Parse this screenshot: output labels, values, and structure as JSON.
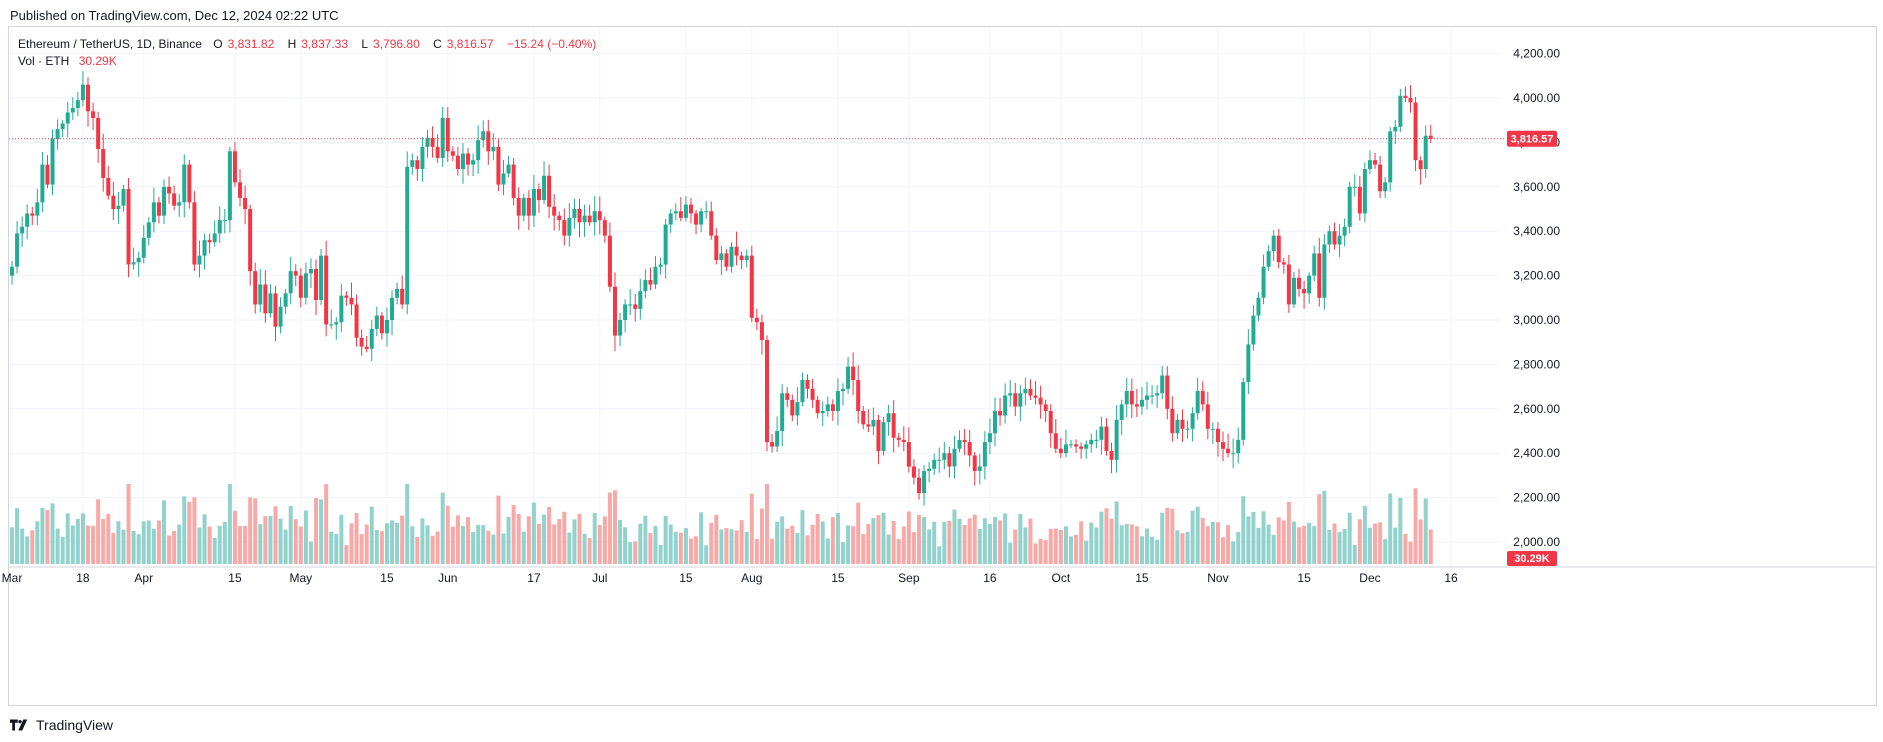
{
  "header": {
    "published": "Published on TradingView.com, Dec 12, 2024 02:22 UTC"
  },
  "legend": {
    "symbol": "Ethereum / TetherUS, 1D, Binance",
    "o_label": "O",
    "o_value": "3,831.82",
    "h_label": "H",
    "h_value": "3,837.33",
    "l_label": "L",
    "l_value": "3,796.80",
    "c_label": "C",
    "c_value": "3,816.57",
    "change": "−15.24 (−0.40%)",
    "vol_label": "Vol · ETH",
    "vol_value": "30.29K"
  },
  "footer": {
    "brand": "TradingView"
  },
  "colors": {
    "up": "#22ab94",
    "down": "#f23645",
    "vol_up": "#92d2cc",
    "vol_down": "#f7a9a7",
    "grid": "#f0f3fa",
    "axis_text": "#131722"
  },
  "chart_data": {
    "type": "candlestick",
    "title": "Ethereum / TetherUS, 1D, Binance",
    "price_axis": {
      "min": 1950,
      "max": 4300,
      "ticks": [
        2000,
        2200,
        2400,
        2600,
        2800,
        3000,
        3200,
        3400,
        3600,
        3800,
        4000,
        4200
      ],
      "tick_labels": [
        "2,000.00",
        "2,200.00",
        "2,400.00",
        "2,600.00",
        "2,800.00",
        "3,000.00",
        "3,200.00",
        "3,400.00",
        "3,600.00",
        "3,800.00",
        "4,000.00",
        "4,200.00"
      ]
    },
    "time_axis": {
      "labels": [
        "Mar",
        "18",
        "Apr",
        "15",
        "May",
        "15",
        "Jun",
        "17",
        "Jul",
        "15",
        "Aug",
        "15",
        "Sep",
        "16",
        "Oct",
        "15",
        "Nov",
        "15",
        "Dec",
        "16"
      ],
      "bar_index": [
        0,
        14,
        26,
        44,
        57,
        74,
        86,
        103,
        116,
        133,
        146,
        163,
        177,
        193,
        207,
        223,
        238,
        255,
        268,
        284
      ]
    },
    "last_price": 3816.57,
    "last_price_label": "3,816.57",
    "last_volume_label": "30.29K",
    "volume_max": 300000,
    "closes": [
      3240,
      3390,
      3420,
      3480,
      3470,
      3530,
      3700,
      3610,
      3815,
      3860,
      3885,
      3935,
      3955,
      3990,
      4060,
      3940,
      3910,
      3770,
      3640,
      3560,
      3500,
      3515,
      3590,
      3250,
      3260,
      3280,
      3370,
      3440,
      3530,
      3470,
      3600,
      3570,
      3515,
      3530,
      3700,
      3530,
      3250,
      3290,
      3360,
      3350,
      3390,
      3450,
      3450,
      3760,
      3620,
      3550,
      3500,
      3220,
      3070,
      3160,
      3030,
      3120,
      2970,
      3060,
      3120,
      3220,
      3200,
      3100,
      3210,
      3230,
      3090,
      3290,
      2980,
      2980,
      2990,
      3110,
      3100,
      3070,
      2920,
      2880,
      2870,
      2960,
      3020,
      2940,
      3000,
      3100,
      3140,
      3070,
      3690,
      3720,
      3680,
      3780,
      3820,
      3780,
      3730,
      3910,
      3760,
      3740,
      3680,
      3750,
      3700,
      3720,
      3810,
      3850,
      3760,
      3780,
      3610,
      3660,
      3700,
      3550,
      3470,
      3550,
      3470,
      3590,
      3540,
      3650,
      3510,
      3470,
      3450,
      3380,
      3460,
      3500,
      3440,
      3470,
      3440,
      3490,
      3450,
      3380,
      3150,
      2930,
      3000,
      3070,
      3070,
      3050,
      3130,
      3180,
      3160,
      3240,
      3250,
      3430,
      3480,
      3490,
      3460,
      3520,
      3480,
      3430,
      3490,
      3490,
      3380,
      3270,
      3300,
      3240,
      3330,
      3290,
      3270,
      3290,
      3010,
      2990,
      2910,
      2450,
      2430,
      2500,
      2670,
      2640,
      2570,
      2630,
      2730,
      2690,
      2640,
      2580,
      2590,
      2620,
      2590,
      2680,
      2690,
      2790,
      2730,
      2590,
      2530,
      2520,
      2550,
      2410,
      2540,
      2580,
      2470,
      2460,
      2450,
      2340,
      2290,
      2220,
      2320,
      2330,
      2370,
      2370,
      2400,
      2340,
      2420,
      2460,
      2450,
      2390,
      2320,
      2340,
      2450,
      2490,
      2590,
      2570,
      2660,
      2670,
      2610,
      2670,
      2690,
      2660,
      2650,
      2620,
      2590,
      2490,
      2420,
      2400,
      2440,
      2440,
      2430,
      2420,
      2440,
      2460,
      2460,
      2520,
      2410,
      2370,
      2550,
      2620,
      2680,
      2620,
      2610,
      2640,
      2660,
      2660,
      2670,
      2750,
      2600,
      2490,
      2550,
      2510,
      2510,
      2580,
      2680,
      2620,
      2510,
      2510,
      2450,
      2420,
      2400,
      2400,
      2460,
      2720,
      2890,
      3020,
      3100,
      3240,
      3310,
      3380,
      3260,
      3250,
      3070,
      3190,
      3140,
      3120,
      3200,
      3300,
      3100,
      3340,
      3400,
      3340,
      3380,
      3420,
      3600,
      3600,
      3480,
      3680,
      3720,
      3700,
      3580,
      3620,
      3850,
      3870,
      4010,
      4000,
      3980,
      3720,
      3680,
      3830,
      3816
    ]
  }
}
